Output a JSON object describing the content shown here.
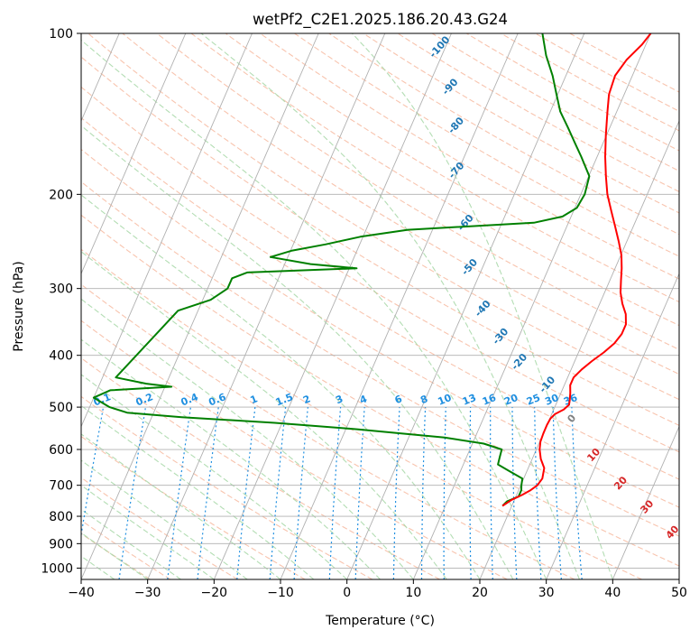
{
  "chart_data": {
    "type": "skew-t",
    "title": "wetPf2_C2E1.2025.186.20.43.G24",
    "xlabel": "Temperature (°C)",
    "ylabel": "Pressure (hPa)",
    "xlim": [
      -40,
      50
    ],
    "ylim": [
      1050,
      100
    ],
    "y_scale": "log",
    "x_ticks": [
      -40,
      -30,
      -20,
      -10,
      0,
      10,
      20,
      30,
      40,
      50
    ],
    "y_ticks": [
      1000,
      900,
      800,
      700,
      600,
      500,
      400,
      300,
      200,
      100
    ],
    "grid": true,
    "colors": {
      "temperature": "#ff0000",
      "dewpoint": "#008000",
      "grid": "#b0b0b0",
      "dry_adiabat": "#f4a582",
      "moist_adiabat": "#a6d7a6",
      "mixing_ratio": "#1f8fe0",
      "saturation_label": "#1f77b4",
      "wetbulb_label": "#d62728",
      "isentrope": "#d9b38c"
    },
    "temperature_profile": [
      {
        "p": 765,
        "t": 18.6
      },
      {
        "p": 745,
        "t": 19.6
      },
      {
        "p": 730,
        "t": 20.8
      },
      {
        "p": 715,
        "t": 21.8
      },
      {
        "p": 700,
        "t": 22.5
      },
      {
        "p": 680,
        "t": 22.8
      },
      {
        "p": 650,
        "t": 22.4
      },
      {
        "p": 625,
        "t": 21.3
      },
      {
        "p": 600,
        "t": 20.5
      },
      {
        "p": 580,
        "t": 20.1
      },
      {
        "p": 560,
        "t": 20.0
      },
      {
        "p": 540,
        "t": 20.0
      },
      {
        "p": 525,
        "t": 20.1
      },
      {
        "p": 515,
        "t": 20.5
      },
      {
        "p": 505,
        "t": 21.5
      },
      {
        "p": 495,
        "t": 22.0
      },
      {
        "p": 485,
        "t": 21.8
      },
      {
        "p": 470,
        "t": 21.4
      },
      {
        "p": 455,
        "t": 20.9
      },
      {
        "p": 440,
        "t": 20.9
      },
      {
        "p": 425,
        "t": 21.6
      },
      {
        "p": 410,
        "t": 22.6
      },
      {
        "p": 395,
        "t": 23.8
      },
      {
        "p": 380,
        "t": 24.8
      },
      {
        "p": 365,
        "t": 25.3
      },
      {
        "p": 350,
        "t": 25.3
      },
      {
        "p": 335,
        "t": 24.6
      },
      {
        "p": 320,
        "t": 23.4
      },
      {
        "p": 305,
        "t": 22.4
      },
      {
        "p": 290,
        "t": 21.7
      },
      {
        "p": 275,
        "t": 21.0
      },
      {
        "p": 260,
        "t": 20.1
      },
      {
        "p": 245,
        "t": 18.8
      },
      {
        "p": 230,
        "t": 17.3
      },
      {
        "p": 215,
        "t": 15.7
      },
      {
        "p": 200,
        "t": 14.0
      },
      {
        "p": 185,
        "t": 12.6
      },
      {
        "p": 170,
        "t": 11.2
      },
      {
        "p": 155,
        "t": 9.9
      },
      {
        "p": 140,
        "t": 8.6
      },
      {
        "p": 130,
        "t": 7.7
      },
      {
        "p": 120,
        "t": 7.4
      },
      {
        "p": 112,
        "t": 8.1
      },
      {
        "p": 105,
        "t": 9.4
      },
      {
        "p": 100,
        "t": 10.0
      }
    ],
    "dewpoint_profile": [
      {
        "p": 765,
        "t": 18.6
      },
      {
        "p": 750,
        "t": 19.0
      },
      {
        "p": 735,
        "t": 20.4
      },
      {
        "p": 715,
        "t": 20.4
      },
      {
        "p": 700,
        "t": 20.1
      },
      {
        "p": 680,
        "t": 19.8
      },
      {
        "p": 660,
        "t": 17.5
      },
      {
        "p": 640,
        "t": 15.2
      },
      {
        "p": 620,
        "t": 15.0
      },
      {
        "p": 600,
        "t": 14.8
      },
      {
        "p": 585,
        "t": 11.7
      },
      {
        "p": 570,
        "t": 5.4
      },
      {
        "p": 550,
        "t": -8.3
      },
      {
        "p": 535,
        "t": -21.1
      },
      {
        "p": 522,
        "t": -35.5
      },
      {
        "p": 512,
        "t": -44.0
      },
      {
        "p": 500,
        "t": -47.0
      },
      {
        "p": 480,
        "t": -50.0
      },
      {
        "p": 465,
        "t": -48.0
      },
      {
        "p": 458,
        "t": -39.0
      },
      {
        "p": 452,
        "t": -43.0
      },
      {
        "p": 440,
        "t": -48.0
      },
      {
        "p": 330,
        "t": -43.0
      },
      {
        "p": 315,
        "t": -38.8
      },
      {
        "p": 300,
        "t": -37.0
      },
      {
        "p": 287,
        "t": -37.0
      },
      {
        "p": 280,
        "t": -35.1
      },
      {
        "p": 275,
        "t": -18.9
      },
      {
        "p": 270,
        "t": -26.1
      },
      {
        "p": 262,
        "t": -32.6
      },
      {
        "p": 255,
        "t": -29.9
      },
      {
        "p": 248,
        "t": -25.1
      },
      {
        "p": 240,
        "t": -20.4
      },
      {
        "p": 233,
        "t": -13.7
      },
      {
        "p": 226,
        "t": 4.8
      },
      {
        "p": 220,
        "t": 8.7
      },
      {
        "p": 212,
        "t": 10.3
      },
      {
        "p": 200,
        "t": 10.6
      },
      {
        "p": 185,
        "t": 10.1
      },
      {
        "p": 170,
        "t": 7.6
      },
      {
        "p": 160,
        "t": 5.7
      },
      {
        "p": 150,
        "t": 3.7
      },
      {
        "p": 140,
        "t": 1.5
      },
      {
        "p": 130,
        "t": -0.2
      },
      {
        "p": 120,
        "t": -2.0
      },
      {
        "p": 110,
        "t": -4.3
      },
      {
        "p": 100,
        "t": -6.3
      }
    ],
    "saturation_labels": [
      {
        "text": "-100",
        "x": -20.4,
        "p": 107
      },
      {
        "text": "-90",
        "x": -16.2,
        "p": 127
      },
      {
        "text": "-80",
        "x": -12.8,
        "p": 150
      },
      {
        "text": "-70",
        "x": -9.8,
        "p": 182
      },
      {
        "text": "-60",
        "x": -5.0,
        "p": 228
      },
      {
        "text": "-50",
        "x": -1.5,
        "p": 276
      },
      {
        "text": "-40",
        "x": 3.2,
        "p": 330
      },
      {
        "text": "-30",
        "x": 7.7,
        "p": 372
      },
      {
        "text": "-20",
        "x": 12.2,
        "p": 415
      },
      {
        "text": "-10",
        "x": 17.9,
        "p": 458
      }
    ],
    "mixing_ratio_labels": [
      "0.1",
      "0.2",
      "0.4",
      "0.6",
      "1",
      "1.5",
      "2",
      "3",
      "4",
      "6",
      "8",
      "10",
      "13",
      "16",
      "20",
      "25",
      "30",
      "36"
    ],
    "wetbulb_labels": [
      {
        "text": "0",
        "x": 23.8,
        "p": 530
      },
      {
        "text": "10",
        "x": 29.5,
        "p": 620
      },
      {
        "text": "20",
        "x": 35.4,
        "p": 700
      },
      {
        "text": "30",
        "x": 40.9,
        "p": 775
      },
      {
        "text": "40",
        "x": 46.4,
        "p": 865
      }
    ]
  }
}
